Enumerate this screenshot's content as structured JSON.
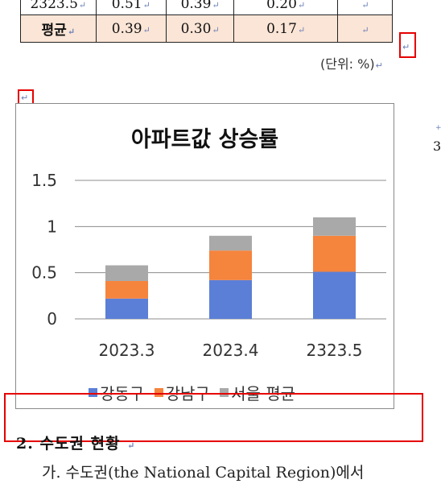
{
  "table": {
    "rows": [
      {
        "label": "2323.5",
        "v1": "0.51",
        "v2": "0.39",
        "v3": "0.20",
        "v4": ""
      },
      {
        "label": "평균",
        "v1": "0.39",
        "v2": "0.30",
        "v3": "0.17",
        "v4": ""
      }
    ],
    "para_mark": "↵"
  },
  "unit_note": "(단위: %)",
  "chart_data": {
    "type": "bar",
    "stacked": true,
    "title": "아파트값 상승률",
    "categories": [
      "2023.3",
      "2023.4",
      "2323.5"
    ],
    "series": [
      {
        "name": "강동구",
        "values": [
          0.22,
          0.42,
          0.51
        ],
        "color": "#5b7fd6"
      },
      {
        "name": "강남구",
        "values": [
          0.19,
          0.32,
          0.39
        ],
        "color": "#f5843d"
      },
      {
        "name": "서울 평균",
        "values": [
          0.17,
          0.16,
          0.2
        ],
        "color": "#a9a9a9"
      }
    ],
    "ylim": [
      0,
      1.5
    ],
    "yticks": [
      "0",
      "0.5",
      "1",
      "1.5"
    ],
    "grid": true,
    "legend": "bottom"
  },
  "heading": "2. 수도권 현황",
  "paragraph": "가. 수도권(the National Capital Region)에서"
}
